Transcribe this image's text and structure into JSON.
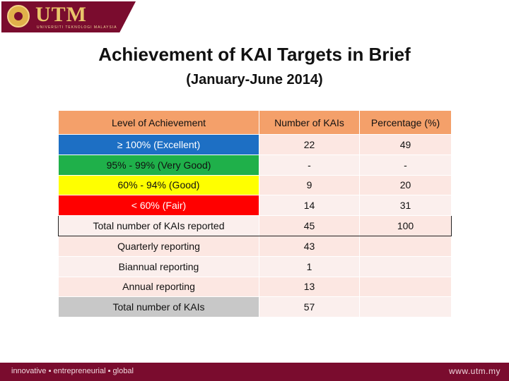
{
  "brand": {
    "logo_text": "UTM",
    "logo_sub": "UNIVERSITI TEKNOLOGI MALAYSIA"
  },
  "slide": {
    "title": "Achievement of KAI Targets in Brief",
    "subtitle": "(January-June 2014)"
  },
  "table": {
    "headers": [
      "Level of Achievement",
      "Number of KAIs",
      "Percentage (%)"
    ],
    "rows": [
      {
        "level": "≥ 100% (Excellent)",
        "count": "22",
        "percent": "49",
        "color": "#1d6fc4"
      },
      {
        "level": "95% - 99% (Very Good)",
        "count": "-",
        "percent": "-",
        "color": "#1fb04a"
      },
      {
        "level": "60% - 94% (Good)",
        "count": "9",
        "percent": "20",
        "color": "#ffff00"
      },
      {
        "level": "< 60% (Fair)",
        "count": "14",
        "percent": "31",
        "color": "#ff0000"
      },
      {
        "level": "Total number of KAIs reported",
        "count": "45",
        "percent": "100"
      },
      {
        "level": "Quarterly reporting",
        "count": "43",
        "percent": ""
      },
      {
        "level": "Biannual reporting",
        "count": "1",
        "percent": ""
      },
      {
        "level": "Annual reporting",
        "count": "13",
        "percent": ""
      },
      {
        "level": "Total number of KAIs",
        "count": "57",
        "percent": ""
      }
    ]
  },
  "footer": {
    "tagline": "innovative ▪ entrepreneurial ▪ global",
    "url": "www.utm.my"
  },
  "colors": {
    "brand_maroon": "#7a0c2e",
    "header_orange": "#f4a06a",
    "row_pink": "#fce7e2"
  }
}
